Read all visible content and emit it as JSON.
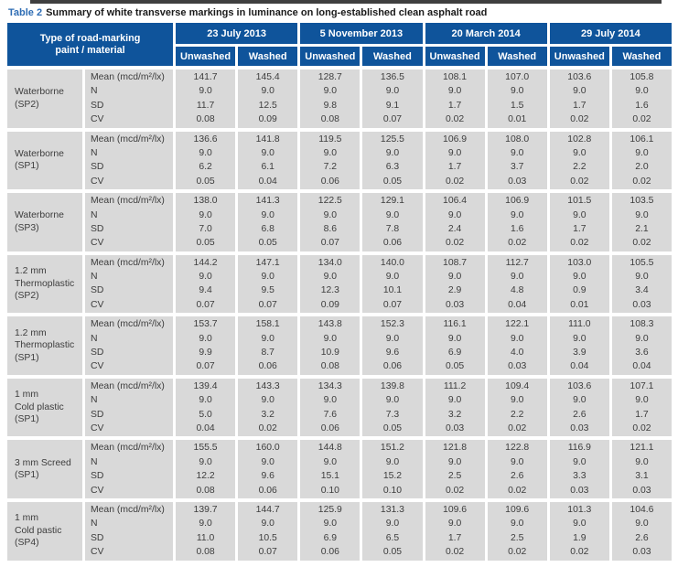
{
  "caption": {
    "label": "Table 2",
    "text": "Summary of white transverse markings in luminance on long-established clean asphalt road"
  },
  "colors": {
    "header_blue": "#0f549b",
    "caption_blue": "#2d6cb4",
    "cell_gray": "#d9d9d9"
  },
  "table": {
    "corner_header": "Type of road-marking\npaint / material",
    "date_headers": [
      "23 July 2013",
      "5 November 2013",
      "20 March 2014",
      "29 July 2014"
    ],
    "condition_headers": [
      "Unwashed",
      "Washed"
    ],
    "stat_labels": [
      "Mean (mcd/m²/lx)",
      "N",
      "SD",
      "CV"
    ],
    "groups": [
      {
        "material": "Waterborne\n(SP2)",
        "mean": [
          "141.7",
          "145.4",
          "128.7",
          "136.5",
          "108.1",
          "107.0",
          "103.6",
          "105.8"
        ],
        "n": [
          "9.0",
          "9.0",
          "9.0",
          "9.0",
          "9.0",
          "9.0",
          "9.0",
          "9.0"
        ],
        "sd": [
          "11.7",
          "12.5",
          "9.8",
          "9.1",
          "1.7",
          "1.5",
          "1.7",
          "1.6"
        ],
        "cv": [
          "0.08",
          "0.09",
          "0.08",
          "0.07",
          "0.02",
          "0.01",
          "0.02",
          "0.02"
        ]
      },
      {
        "material": "Waterborne\n(SP1)",
        "mean": [
          "136.6",
          "141.8",
          "119.5",
          "125.5",
          "106.9",
          "108.0",
          "102.8",
          "106.1"
        ],
        "n": [
          "9.0",
          "9.0",
          "9.0",
          "9.0",
          "9.0",
          "9.0",
          "9.0",
          "9.0"
        ],
        "sd": [
          "6.2",
          "6.1",
          "7.2",
          "6.3",
          "1.7",
          "3.7",
          "2.2",
          "2.0"
        ],
        "cv": [
          "0.05",
          "0.04",
          "0.06",
          "0.05",
          "0.02",
          "0.03",
          "0.02",
          "0.02"
        ]
      },
      {
        "material": "Waterborne\n(SP3)",
        "mean": [
          "138.0",
          "141.3",
          "122.5",
          "129.1",
          "106.4",
          "106.9",
          "101.5",
          "103.5"
        ],
        "n": [
          "9.0",
          "9.0",
          "9.0",
          "9.0",
          "9.0",
          "9.0",
          "9.0",
          "9.0"
        ],
        "sd": [
          "7.0",
          "6.8",
          "8.6",
          "7.8",
          "2.4",
          "1.6",
          "1.7",
          "2.1"
        ],
        "cv": [
          "0.05",
          "0.05",
          "0.07",
          "0.06",
          "0.02",
          "0.02",
          "0.02",
          "0.02"
        ]
      },
      {
        "material": "1.2 mm\nThermoplastic\n(SP2)",
        "mean": [
          "144.2",
          "147.1",
          "134.0",
          "140.0",
          "108.7",
          "112.7",
          "103.0",
          "105.5"
        ],
        "n": [
          "9.0",
          "9.0",
          "9.0",
          "9.0",
          "9.0",
          "9.0",
          "9.0",
          "9.0"
        ],
        "sd": [
          "9.4",
          "9.5",
          "12.3",
          "10.1",
          "2.9",
          "4.8",
          "0.9",
          "3.4"
        ],
        "cv": [
          "0.07",
          "0.07",
          "0.09",
          "0.07",
          "0.03",
          "0.04",
          "0.01",
          "0.03"
        ]
      },
      {
        "material": "1.2 mm\nThermoplastic\n(SP1)",
        "mean": [
          "153.7",
          "158.1",
          "143.8",
          "152.3",
          "116.1",
          "122.1",
          "111.0",
          "108.3"
        ],
        "n": [
          "9.0",
          "9.0",
          "9.0",
          "9.0",
          "9.0",
          "9.0",
          "9.0",
          "9.0"
        ],
        "sd": [
          "9.9",
          "8.7",
          "10.9",
          "9.6",
          "6.9",
          "4.0",
          "3.9",
          "3.6"
        ],
        "cv": [
          "0.07",
          "0.06",
          "0.08",
          "0.06",
          "0.05",
          "0.03",
          "0.04",
          "0.04"
        ]
      },
      {
        "material": "1 mm\nCold plastic\n(SP1)",
        "mean": [
          "139.4",
          "143.3",
          "134.3",
          "139.8",
          "111.2",
          "109.4",
          "103.6",
          "107.1"
        ],
        "n": [
          "9.0",
          "9.0",
          "9.0",
          "9.0",
          "9.0",
          "9.0",
          "9.0",
          "9.0"
        ],
        "sd": [
          "5.0",
          "3.2",
          "7.6",
          "7.3",
          "3.2",
          "2.2",
          "2.6",
          "1.7"
        ],
        "cv": [
          "0.04",
          "0.02",
          "0.06",
          "0.05",
          "0.03",
          "0.02",
          "0.03",
          "0.02"
        ]
      },
      {
        "material": "3 mm Screed\n(SP1)",
        "mean": [
          "155.5",
          "160.0",
          "144.8",
          "151.2",
          "121.8",
          "122.8",
          "116.9",
          "121.1"
        ],
        "n": [
          "9.0",
          "9.0",
          "9.0",
          "9.0",
          "9.0",
          "9.0",
          "9.0",
          "9.0"
        ],
        "sd": [
          "12.2",
          "9.6",
          "15.1",
          "15.2",
          "2.5",
          "2.6",
          "3.3",
          "3.1"
        ],
        "cv": [
          "0.08",
          "0.06",
          "0.10",
          "0.10",
          "0.02",
          "0.02",
          "0.03",
          "0.03"
        ]
      },
      {
        "material": "1 mm\nCold pastic\n(SP4)",
        "mean": [
          "139.7",
          "144.7",
          "125.9",
          "131.3",
          "109.6",
          "109.6",
          "101.3",
          "104.6"
        ],
        "n": [
          "9.0",
          "9.0",
          "9.0",
          "9.0",
          "9.0",
          "9.0",
          "9.0",
          "9.0"
        ],
        "sd": [
          "11.0",
          "10.5",
          "6.9",
          "6.5",
          "1.7",
          "2.5",
          "1.9",
          "2.6"
        ],
        "cv": [
          "0.08",
          "0.07",
          "0.06",
          "0.05",
          "0.02",
          "0.02",
          "0.02",
          "0.03"
        ]
      }
    ]
  }
}
